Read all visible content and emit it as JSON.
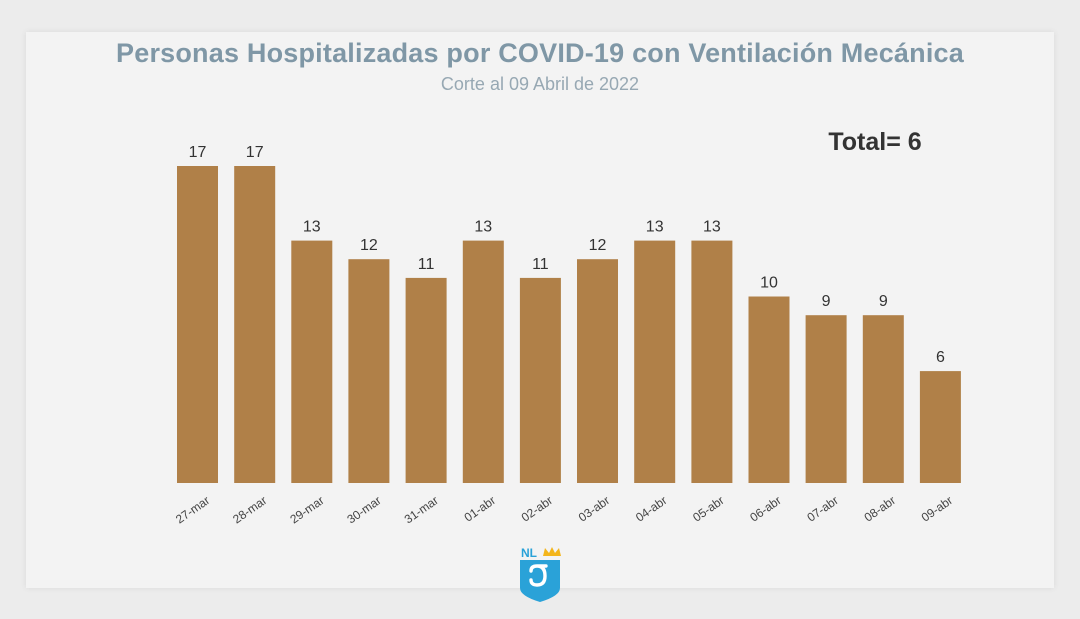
{
  "chart_data": {
    "type": "bar",
    "title": "Personas Hospitalizadas por COVID-19 con Ventilación Mecánica",
    "subtitle": "Corte al 09 Abril de 2022",
    "annotation": "Total= 6",
    "categories": [
      "27-mar",
      "28-mar",
      "29-mar",
      "30-mar",
      "31-mar",
      "01-abr",
      "02-abr",
      "03-abr",
      "04-abr",
      "05-abr",
      "06-abr",
      "07-abr",
      "08-abr",
      "09-abr"
    ],
    "values": [
      17,
      17,
      13,
      12,
      11,
      13,
      11,
      12,
      13,
      13,
      10,
      9,
      9,
      6
    ],
    "ylim": [
      0,
      17
    ],
    "grid": false,
    "legend": "none",
    "bar_color": "#b08048",
    "label_color": "#333333"
  },
  "logo": {
    "text": "NL",
    "primary_color": "#2aa2d8",
    "accent_color": "#f3b51b",
    "icon": "nuevo-leon-shield-icon"
  }
}
